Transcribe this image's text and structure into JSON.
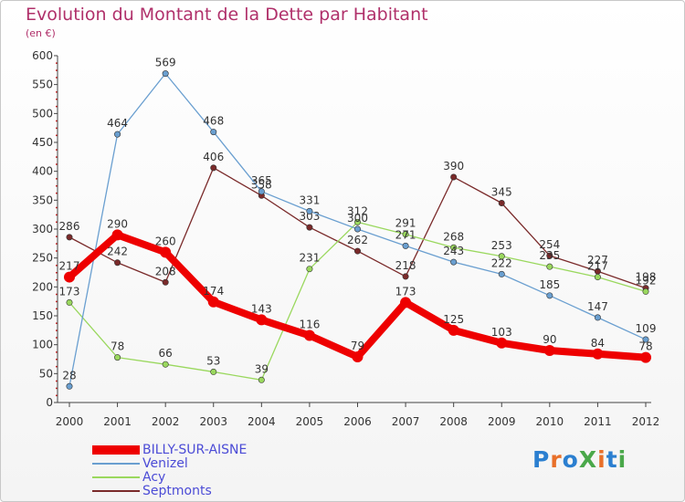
{
  "title": "Evolution du Montant de la Dette par Habitant",
  "unit_label": "(en €)",
  "logo_text": "ProXiti",
  "chart_data": {
    "type": "line",
    "x": [
      "2000",
      "2001",
      "2002",
      "2003",
      "2004",
      "2005",
      "2006",
      "2007",
      "2008",
      "2009",
      "2010",
      "2011",
      "2012"
    ],
    "ylim": [
      0,
      600
    ],
    "yticks": [
      0,
      50,
      100,
      150,
      200,
      250,
      300,
      350,
      400,
      450,
      500,
      550,
      600
    ],
    "grid": false,
    "legend_position": "bottom-left",
    "series": [
      {
        "name": "BILLY-SUR-AISNE",
        "color": "#ee0000",
        "values": [
          217,
          290,
          260,
          174,
          143,
          116,
          79,
          173,
          125,
          103,
          90,
          84,
          78
        ]
      },
      {
        "name": "Venizel",
        "color": "#6a9fd0",
        "values": [
          28,
          464,
          569,
          468,
          365,
          331,
          300,
          271,
          243,
          222,
          185,
          147,
          109
        ]
      },
      {
        "name": "Acy",
        "color": "#9ad85e",
        "values": [
          173,
          78,
          66,
          53,
          39,
          231,
          312,
          291,
          268,
          253,
          235,
          217,
          192
        ]
      },
      {
        "name": "Septmonts",
        "color": "#7a2a2a",
        "values": [
          286,
          242,
          208,
          406,
          358,
          303,
          262,
          218,
          390,
          345,
          254,
          227,
          198
        ]
      }
    ]
  }
}
